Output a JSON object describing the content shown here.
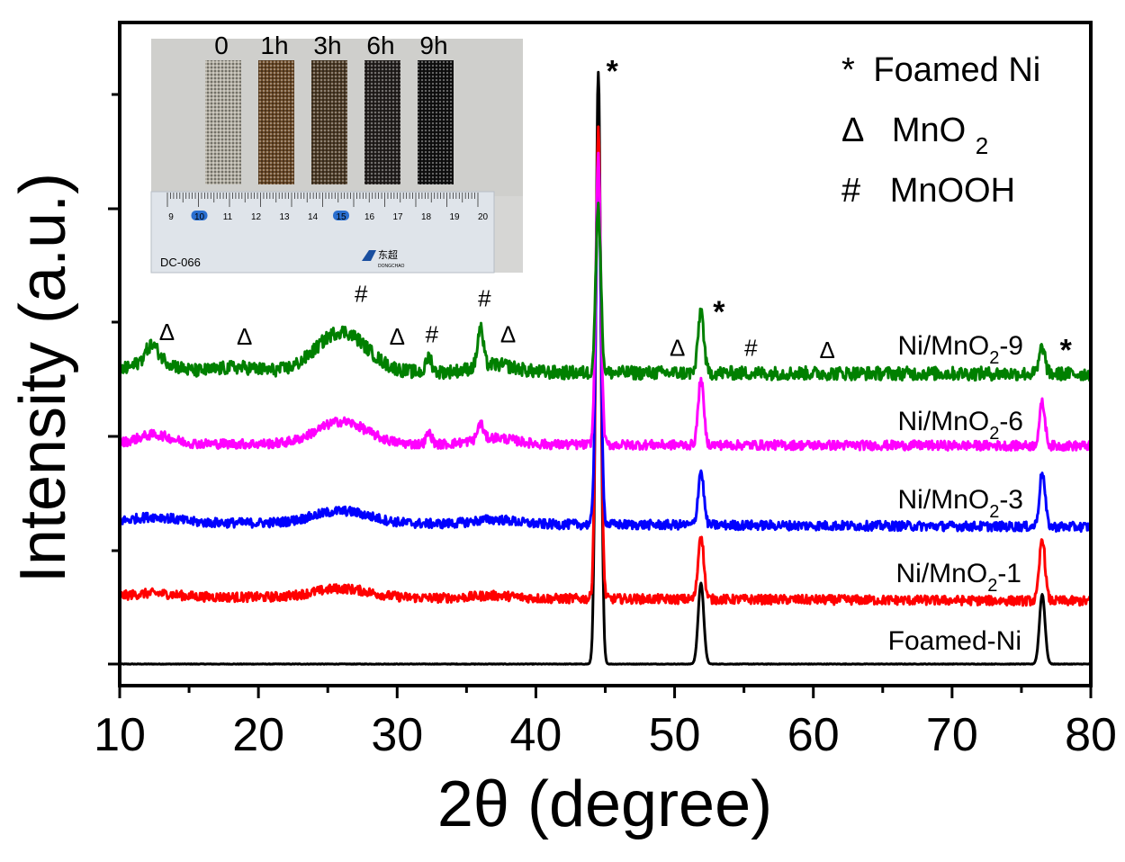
{
  "chart_data": {
    "type": "line",
    "xlabel": "2θ (degree)",
    "ylabel": "Intensity (a.u.)",
    "xlim": [
      10,
      80
    ],
    "xticks": [
      "10",
      "20",
      "30",
      "40",
      "50",
      "60",
      "70",
      "80"
    ],
    "legend": {
      "placement": "top-right",
      "entries": [
        {
          "symbol": "*",
          "text": "Foamed Ni"
        },
        {
          "symbol": "Δ",
          "text": "MnO",
          "sub": "2"
        },
        {
          "symbol": "#",
          "text": "MnOOH"
        }
      ]
    },
    "series": [
      {
        "name": "Foamed-Ni",
        "label_pre": "Foamed-Ni",
        "label_sub": "",
        "label_post": "",
        "color": "#000000",
        "baseline": 0.0,
        "noise": 0.004,
        "slope": 0.0,
        "broad": [],
        "peaks": [
          [
            44.5,
            26.3,
            0.18
          ],
          [
            51.9,
            3.6,
            0.2
          ],
          [
            76.5,
            3.1,
            0.2
          ]
        ]
      },
      {
        "name": "Ni/MnO2-1",
        "label_pre": "Ni/MnO",
        "label_sub": "2",
        "label_post": "-1",
        "color": "#ff0000",
        "baseline": 3.0,
        "noise": 0.07,
        "slope": -0.2,
        "broad": [
          [
            12.5,
            0.15,
            1.5
          ],
          [
            26.0,
            0.4,
            2.0
          ],
          [
            37.0,
            0.12,
            1.5
          ]
        ],
        "peaks": [
          [
            44.5,
            21.0,
            0.18
          ],
          [
            51.9,
            2.9,
            0.2
          ],
          [
            76.5,
            2.8,
            0.2
          ]
        ]
      },
      {
        "name": "Ni/MnO2-3",
        "label_pre": "Ni/MnO",
        "label_sub": "2",
        "label_post": "-3",
        "color": "#0000ff",
        "baseline": 6.3,
        "noise": 0.07,
        "slope": -0.2,
        "broad": [
          [
            12.5,
            0.25,
            1.5
          ],
          [
            26.0,
            0.55,
            2.0
          ],
          [
            37.0,
            0.2,
            1.5
          ]
        ],
        "peaks": [
          [
            44.5,
            16.0,
            0.18
          ],
          [
            51.9,
            2.4,
            0.2
          ],
          [
            76.5,
            2.4,
            0.2
          ]
        ]
      },
      {
        "name": "Ni/MnO2-6",
        "label_pre": "Ni/MnO",
        "label_sub": "2",
        "label_post": "-6",
        "color": "#ff00ff",
        "baseline": 9.8,
        "noise": 0.07,
        "slope": -0.1,
        "broad": [
          [
            12.5,
            0.4,
            1.2
          ],
          [
            26.0,
            1.0,
            1.8
          ],
          [
            37.0,
            0.3,
            1.5
          ]
        ],
        "peaks": [
          [
            32.3,
            0.5,
            0.2
          ],
          [
            36.0,
            0.7,
            0.2
          ],
          [
            44.5,
            12.8,
            0.18
          ],
          [
            51.9,
            2.9,
            0.2
          ],
          [
            76.5,
            1.9,
            0.2
          ]
        ]
      },
      {
        "name": "Ni/MnO2-9",
        "label_pre": "Ni/MnO",
        "label_sub": "2",
        "label_post": "-9",
        "color": "#008000",
        "baseline": 13.0,
        "noise": 0.1,
        "slope": -0.1,
        "broad": [
          [
            12.5,
            0.6,
            1.2
          ],
          [
            18.5,
            0.2,
            1.5
          ],
          [
            26.0,
            1.8,
            1.8
          ],
          [
            37.0,
            0.35,
            1.5
          ]
        ],
        "peaks": [
          [
            12.3,
            0.6,
            0.4
          ],
          [
            32.3,
            0.7,
            0.2
          ],
          [
            36.0,
            1.7,
            0.2
          ],
          [
            44.5,
            7.5,
            0.18
          ],
          [
            51.9,
            2.8,
            0.2
          ],
          [
            76.5,
            1.2,
            0.2
          ]
        ]
      }
    ],
    "annotations": [
      {
        "text": "*",
        "x": 45.5,
        "y": 25.9
      },
      {
        "text": "*",
        "x": 53.2,
        "y": 15.2
      },
      {
        "text": "*",
        "x": 78.2,
        "y": 13.5
      },
      {
        "text": "#",
        "x": 27.4,
        "y": 16.1
      },
      {
        "text": "#",
        "x": 36.3,
        "y": 15.9
      },
      {
        "text": "#",
        "x": 32.5,
        "y": 14.3
      },
      {
        "text": "#",
        "x": 55.5,
        "y": 13.7
      },
      {
        "text": "Δ",
        "x": 13.4,
        "y": 14.4
      },
      {
        "text": "Δ",
        "x": 19.0,
        "y": 14.2
      },
      {
        "text": "Δ",
        "x": 30.0,
        "y": 14.2
      },
      {
        "text": "Δ",
        "x": 38.0,
        "y": 14.3
      },
      {
        "text": "Δ",
        "x": 50.2,
        "y": 13.7
      },
      {
        "text": "Δ",
        "x": 61.0,
        "y": 13.6
      }
    ],
    "inset": {
      "labels": [
        "0",
        "1h",
        "3h",
        "6h",
        "9h"
      ],
      "sample_colors": [
        "#b0aca0",
        "#6b4a28",
        "#4f3d28",
        "#262220",
        "#121212"
      ],
      "ruler_numbers": [
        "9",
        "10",
        "11",
        "12",
        "13",
        "14",
        "15",
        "16",
        "17",
        "18",
        "19",
        "20"
      ],
      "ruler_text": "DC-066",
      "brand_text": "东超",
      "brand_sub": "DONGCHAO"
    }
  }
}
